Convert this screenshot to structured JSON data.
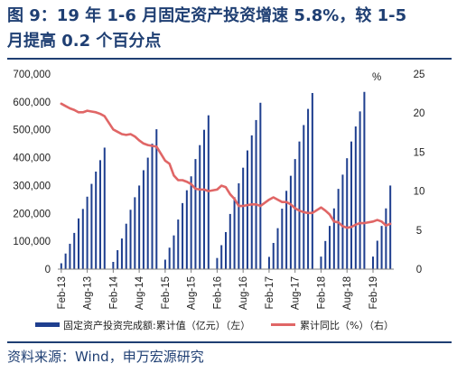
{
  "header": {
    "title_line1": "图 9：19 年 1-6 月固定资产投资增速 5.8%，较 1-5",
    "title_line2": "月提高 0.2 个百分点"
  },
  "source": "资料来源：Wind，申万宏源研究",
  "colors": {
    "title": "#1f3f73",
    "bar": "#1f3f8f",
    "line": "#e06666",
    "axis": "#7f7f7f"
  },
  "chart_data": {
    "type": "bar+line",
    "left_axis": {
      "min": 0,
      "max": 700000,
      "ticks": [
        "0",
        "100,000",
        "200,000",
        "300,000",
        "400,000",
        "500,000",
        "600,000",
        "700,000"
      ]
    },
    "right_axis": {
      "min": 0,
      "max": 25,
      "ticks": [
        "0",
        "5",
        "10",
        "15",
        "20",
        "25"
      ],
      "unit_label": "%"
    },
    "x_tick_labels": [
      "Feb-13",
      "Aug-13",
      "Feb-14",
      "Aug-14",
      "Feb-15",
      "Aug-15",
      "Feb-16",
      "Aug-16",
      "Feb-17",
      "Aug-17",
      "Feb-18",
      "Aug-18",
      "Feb-19"
    ],
    "periods": [
      "2013-02",
      "2013-03",
      "2013-04",
      "2013-05",
      "2013-06",
      "2013-07",
      "2013-08",
      "2013-09",
      "2013-10",
      "2013-11",
      "2013-12",
      "2014-02",
      "2014-03",
      "2014-04",
      "2014-05",
      "2014-06",
      "2014-07",
      "2014-08",
      "2014-09",
      "2014-10",
      "2014-11",
      "2014-12",
      "2015-02",
      "2015-03",
      "2015-04",
      "2015-05",
      "2015-06",
      "2015-07",
      "2015-08",
      "2015-09",
      "2015-10",
      "2015-11",
      "2015-12",
      "2016-02",
      "2016-03",
      "2016-04",
      "2016-05",
      "2016-06",
      "2016-07",
      "2016-08",
      "2016-09",
      "2016-10",
      "2016-11",
      "2016-12",
      "2017-02",
      "2017-03",
      "2017-04",
      "2017-05",
      "2017-06",
      "2017-07",
      "2017-08",
      "2017-09",
      "2017-10",
      "2017-11",
      "2017-12",
      "2018-02",
      "2018-03",
      "2018-04",
      "2018-05",
      "2018-06",
      "2018-07",
      "2018-08",
      "2018-09",
      "2018-10",
      "2018-11",
      "2018-12",
      "2019-02",
      "2019-03",
      "2019-04",
      "2019-05",
      "2019-06"
    ],
    "series": [
      {
        "name": "固定资产投资完成额:累计值（亿元）（左）",
        "axis": "left",
        "values": [
          21000,
          56000,
          91000,
          130000,
          182000,
          216000,
          260000,
          306000,
          350000,
          391000,
          436000,
          26000,
          68000,
          110000,
          163000,
          213000,
          258000,
          300000,
          355000,
          400000,
          450000,
          502000,
          34000,
          77000,
          121000,
          178000,
          237000,
          283000,
          333000,
          395000,
          445000,
          500000,
          552000,
          40000,
          86000,
          133000,
          198000,
          258000,
          308000,
          364000,
          426000,
          480000,
          535000,
          597000,
          44000,
          94000,
          147000,
          217000,
          281000,
          335000,
          395000,
          458000,
          517000,
          575000,
          632000,
          45000,
          101000,
          155000,
          218000,
          288000,
          339000,
          398000,
          458000,
          512000,
          566000,
          636000,
          45000,
          102000,
          155000,
          218000,
          300000
        ]
      },
      {
        "name": "累计同比（%）（右）",
        "axis": "right",
        "values": [
          21.2,
          20.9,
          20.6,
          20.4,
          20.1,
          20.1,
          20.3,
          20.2,
          20.1,
          19.9,
          19.6,
          17.9,
          17.6,
          17.3,
          17.2,
          17.3,
          17.0,
          16.5,
          16.1,
          15.9,
          15.8,
          15.7,
          13.9,
          13.5,
          12.0,
          11.4,
          11.4,
          11.2,
          10.9,
          10.3,
          10.2,
          10.2,
          10.0,
          10.2,
          10.7,
          10.5,
          9.6,
          9.0,
          8.1,
          8.1,
          8.2,
          8.3,
          8.3,
          8.1,
          8.9,
          9.2,
          8.9,
          8.6,
          8.6,
          8.3,
          7.8,
          7.5,
          7.3,
          7.2,
          7.2,
          7.9,
          7.5,
          7.0,
          6.1,
          6.0,
          5.5,
          5.3,
          5.4,
          5.7,
          5.9,
          5.9,
          6.1,
          6.3,
          6.1,
          5.6,
          5.8
        ]
      }
    ]
  }
}
